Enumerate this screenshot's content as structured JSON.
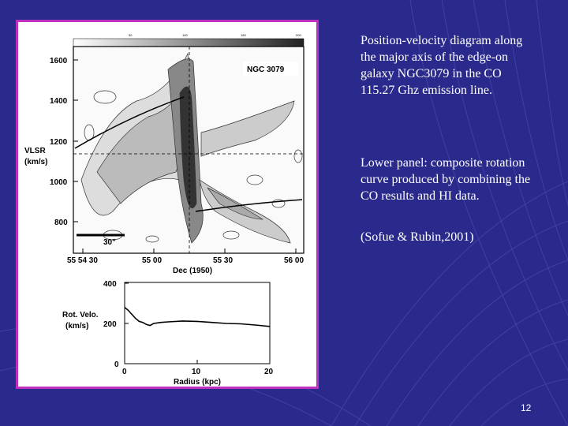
{
  "captions": {
    "pv_description": "Position-velocity diagram along the major axis of the edge-on galaxy NGC3079 in the CO 115.27 Ghz emission line.",
    "lower_panel": "Lower panel: composite rotation curve produced by combining the CO results and HI data.",
    "citation": "(Sofue & Rubin,2001)"
  },
  "slide_number": "12",
  "colors": {
    "background": "#2a2a8c",
    "frame_border": "#c030c0",
    "text": "#ffffff"
  },
  "figure": {
    "upper": {
      "object_label": "NGC 3079",
      "ylabel_line1": "VLSR",
      "ylabel_line2": "(km/s)",
      "yticks": [
        "1600",
        "1400",
        "1200",
        "1000",
        "800"
      ],
      "xticks": [
        "55 54 30",
        "55 00",
        "55 30",
        "56 00"
      ],
      "xlabel": "Dec (1950)",
      "scalebar_label": "30\"",
      "colorbar_ticks": [
        "50",
        "100",
        "150",
        "200"
      ]
    },
    "lower": {
      "ylabel_line1": "Rot. Velo.",
      "ylabel_line2": "(km/s)",
      "yticks": [
        "400",
        "200",
        "0"
      ],
      "xticks": [
        "0",
        "10",
        "20"
      ],
      "xlabel": "Radius (kpc)"
    }
  },
  "chart_data": {
    "type": "line",
    "xlabel": "Radius (kpc)",
    "ylabel": "Rot. Velo. (km/s)",
    "xlim": [
      0,
      20
    ],
    "ylim": [
      0,
      400
    ],
    "x": [
      0,
      0.5,
      1,
      1.5,
      2,
      2.5,
      3,
      3.5,
      4,
      5,
      6,
      8,
      10,
      12,
      14,
      16,
      18,
      20
    ],
    "values": [
      280,
      265,
      245,
      225,
      210,
      205,
      195,
      190,
      200,
      205,
      208,
      212,
      210,
      205,
      200,
      198,
      192,
      185
    ]
  }
}
